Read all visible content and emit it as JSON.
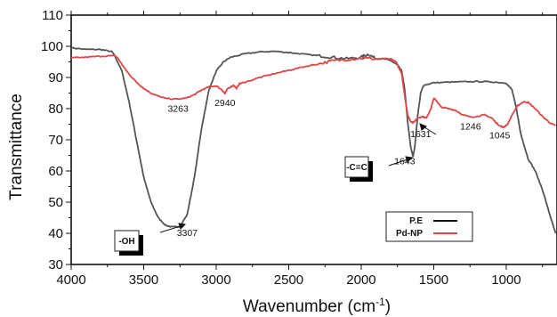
{
  "chart_data": {
    "type": "line",
    "xlabel": "Wavenumber (cm",
    "xlabel_sup": "-1",
    "xlabel_close": ")",
    "ylabel": "Transmittance",
    "xlim": [
      4000,
      650
    ],
    "x_reversed": true,
    "ylim": [
      30,
      110
    ],
    "x_ticks": [
      4000,
      3500,
      3000,
      2500,
      2000,
      1500,
      1000
    ],
    "y_ticks": [
      30,
      40,
      50,
      60,
      70,
      80,
      90,
      100,
      110
    ],
    "grid": false,
    "legend_position": "bottom-right",
    "series": [
      {
        "name": "P.E",
        "color": "#555555",
        "points": [
          [
            4000,
            99.5
          ],
          [
            3900,
            99.0
          ],
          [
            3800,
            99.0
          ],
          [
            3720,
            98.3
          ],
          [
            3700,
            97.0
          ],
          [
            3650,
            92.0
          ],
          [
            3600,
            82.0
          ],
          [
            3550,
            70.0
          ],
          [
            3500,
            58.0
          ],
          [
            3450,
            50.0
          ],
          [
            3400,
            45.0
          ],
          [
            3350,
            42.6
          ],
          [
            3307,
            42.0
          ],
          [
            3250,
            42.2
          ],
          [
            3200,
            46.0
          ],
          [
            3150,
            58.0
          ],
          [
            3100,
            74.0
          ],
          [
            3050,
            86.0
          ],
          [
            3000,
            92.0
          ],
          [
            2950,
            95.0
          ],
          [
            2900,
            96.5
          ],
          [
            2800,
            97.6
          ],
          [
            2700,
            98.2
          ],
          [
            2600,
            98.4
          ],
          [
            2500,
            98.0
          ],
          [
            2400,
            97.5
          ],
          [
            2300,
            97.0
          ],
          [
            2200,
            96.5
          ],
          [
            2100,
            96.0
          ],
          [
            2000,
            96.5
          ],
          [
            1950,
            97.5
          ],
          [
            1900,
            96.0
          ],
          [
            1850,
            96.0
          ],
          [
            1800,
            95.5
          ],
          [
            1750,
            94.0
          ],
          [
            1720,
            92.0
          ],
          [
            1700,
            86.0
          ],
          [
            1680,
            76.0
          ],
          [
            1660,
            68.0
          ],
          [
            1643,
            64.5
          ],
          [
            1630,
            68.0
          ],
          [
            1610,
            78.0
          ],
          [
            1590,
            85.0
          ],
          [
            1570,
            87.5
          ],
          [
            1500,
            88.3
          ],
          [
            1400,
            88.5
          ],
          [
            1300,
            88.6
          ],
          [
            1200,
            88.7
          ],
          [
            1100,
            88.6
          ],
          [
            1000,
            88.2
          ],
          [
            960,
            86.0
          ],
          [
            930,
            80.0
          ],
          [
            900,
            72.0
          ],
          [
            850,
            64.0
          ],
          [
            800,
            60.0
          ],
          [
            750,
            54.0
          ],
          [
            700,
            46.0
          ],
          [
            660,
            40.0
          ]
        ]
      },
      {
        "name": "Pd-NP",
        "color": "#e04545",
        "points": [
          [
            4000,
            96.3
          ],
          [
            3900,
            96.5
          ],
          [
            3800,
            96.8
          ],
          [
            3700,
            97.0
          ],
          [
            3680,
            96.3
          ],
          [
            3640,
            93.5
          ],
          [
            3600,
            91.0
          ],
          [
            3550,
            88.5
          ],
          [
            3500,
            86.5
          ],
          [
            3450,
            85.0
          ],
          [
            3400,
            84.0
          ],
          [
            3350,
            83.3
          ],
          [
            3263,
            83.0
          ],
          [
            3200,
            83.5
          ],
          [
            3150,
            84.5
          ],
          [
            3100,
            86.0
          ],
          [
            3050,
            87.0
          ],
          [
            3000,
            87.3
          ],
          [
            2960,
            86.0
          ],
          [
            2940,
            84.8
          ],
          [
            2920,
            86.5
          ],
          [
            2880,
            87.5
          ],
          [
            2860,
            86.5
          ],
          [
            2840,
            88.0
          ],
          [
            2800,
            88.5
          ],
          [
            2700,
            90.0
          ],
          [
            2600,
            91.2
          ],
          [
            2500,
            92.3
          ],
          [
            2400,
            93.4
          ],
          [
            2300,
            94.3
          ],
          [
            2200,
            95.3
          ],
          [
            2100,
            95.8
          ],
          [
            2000,
            96.2
          ],
          [
            1900,
            96.0
          ],
          [
            1800,
            96.0
          ],
          [
            1760,
            95.0
          ],
          [
            1720,
            91.0
          ],
          [
            1700,
            84.0
          ],
          [
            1680,
            78.0
          ],
          [
            1660,
            76.0
          ],
          [
            1645,
            75.5
          ],
          [
            1631,
            76.0
          ],
          [
            1610,
            77.0
          ],
          [
            1580,
            77.5
          ],
          [
            1550,
            77.0
          ],
          [
            1520,
            80.0
          ],
          [
            1500,
            83.3
          ],
          [
            1480,
            82.5
          ],
          [
            1450,
            80.5
          ],
          [
            1400,
            80.0
          ],
          [
            1350,
            79.5
          ],
          [
            1300,
            78.0
          ],
          [
            1246,
            77.3
          ],
          [
            1200,
            77.5
          ],
          [
            1150,
            78.0
          ],
          [
            1100,
            77.0
          ],
          [
            1070,
            75.5
          ],
          [
            1045,
            74.5
          ],
          [
            1020,
            74.0
          ],
          [
            990,
            75.0
          ],
          [
            960,
            78.0
          ],
          [
            920,
            81.0
          ],
          [
            880,
            82.2
          ],
          [
            850,
            82.0
          ],
          [
            800,
            80.0
          ],
          [
            750,
            77.5
          ],
          [
            700,
            75.5
          ],
          [
            660,
            74.5
          ]
        ]
      }
    ],
    "annotations": [
      {
        "id": "ann-3263",
        "text": "3263",
        "x": 3263,
        "y": 83.0,
        "dy": 14
      },
      {
        "id": "ann-2940",
        "text": "2940",
        "x": 2940,
        "y": 84.8,
        "dy": 14
      },
      {
        "id": "ann-1631",
        "text": "1631",
        "x": 1590,
        "y": 76.0,
        "dy": 18
      },
      {
        "id": "ann-1246",
        "text": "1246",
        "x": 1246,
        "y": 77.3,
        "dy": 14
      },
      {
        "id": "ann-1045",
        "text": "1045",
        "x": 1045,
        "y": 74.5,
        "dy": 14
      },
      {
        "id": "ann-1643",
        "text": "1643",
        "x": 1700,
        "y": 64.5,
        "dy": 8
      },
      {
        "id": "ann-3307",
        "text": "3307",
        "x": 3200,
        "y": 42.0,
        "dy": 10
      }
    ],
    "boxed_labels": [
      {
        "id": "oh",
        "text": "-OH"
      },
      {
        "id": "cc",
        "text": "-C=C"
      }
    ]
  }
}
